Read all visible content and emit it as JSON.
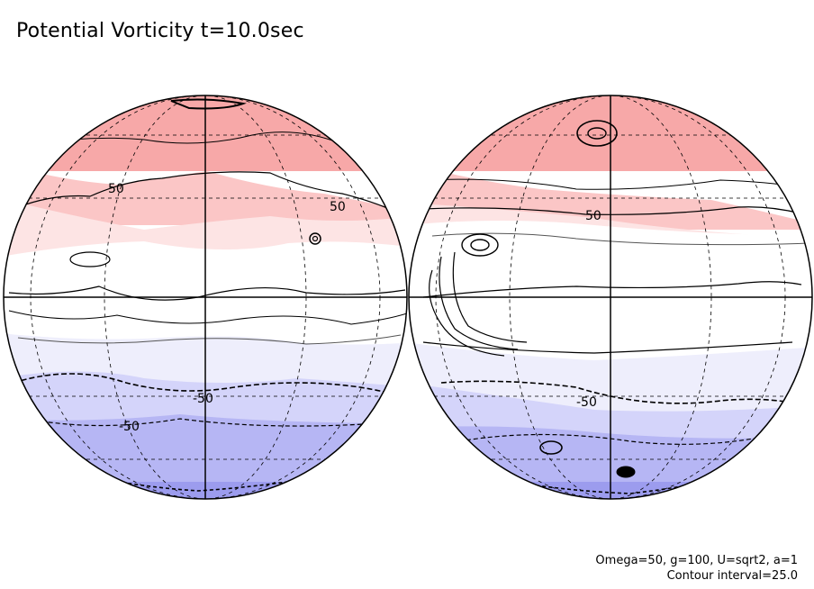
{
  "title": "Potential Vorticity t=10.0sec",
  "footer": {
    "params": "Omega=50, g=100, U=sqrt2, a=1",
    "contour": "Contour interval=25.0"
  },
  "contour_labels": [
    "50",
    "-50"
  ],
  "colors": {
    "band_north_3": "#f7a8a8",
    "band_north_2": "#fbc6c6",
    "band_north_1": "#fde4e4",
    "band_equator": "#ffffff",
    "band_south_1": "#eeeefc",
    "band_south_2": "#d4d4fa",
    "band_south_3": "#b6b6f4",
    "band_south_4": "#9c9cee",
    "outline": "#000000"
  },
  "hemispheres": [
    "west",
    "east"
  ]
}
